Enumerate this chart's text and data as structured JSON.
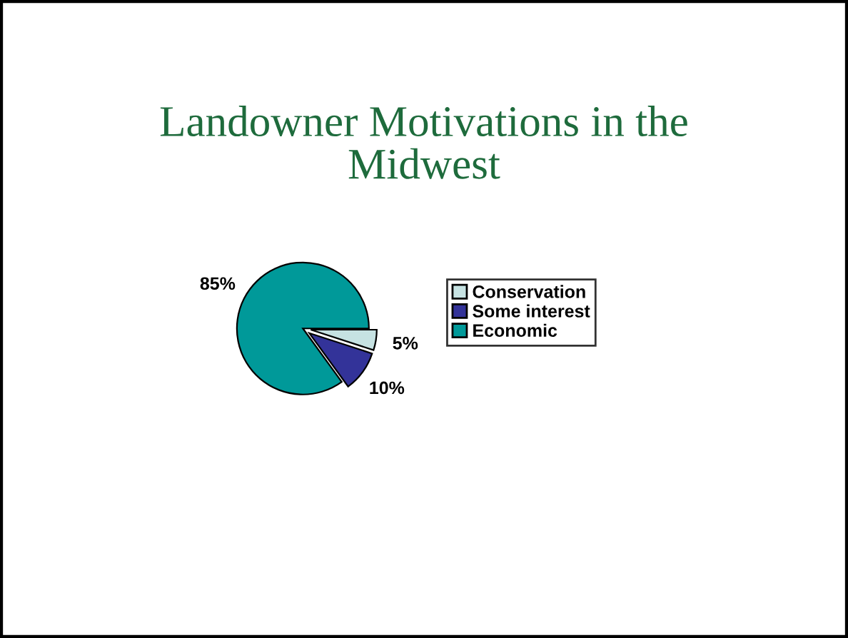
{
  "chart_data": {
    "type": "pie",
    "title": "Landowner Motivations in the\nMidwest",
    "categories": [
      "Conservation",
      "Some interest",
      "Economic"
    ],
    "values": [
      5,
      10,
      85
    ],
    "colors": [
      "#c6e2e2",
      "#333399",
      "#009999"
    ],
    "value_labels": [
      "5%",
      "10%",
      "85%"
    ],
    "legend": "right"
  }
}
